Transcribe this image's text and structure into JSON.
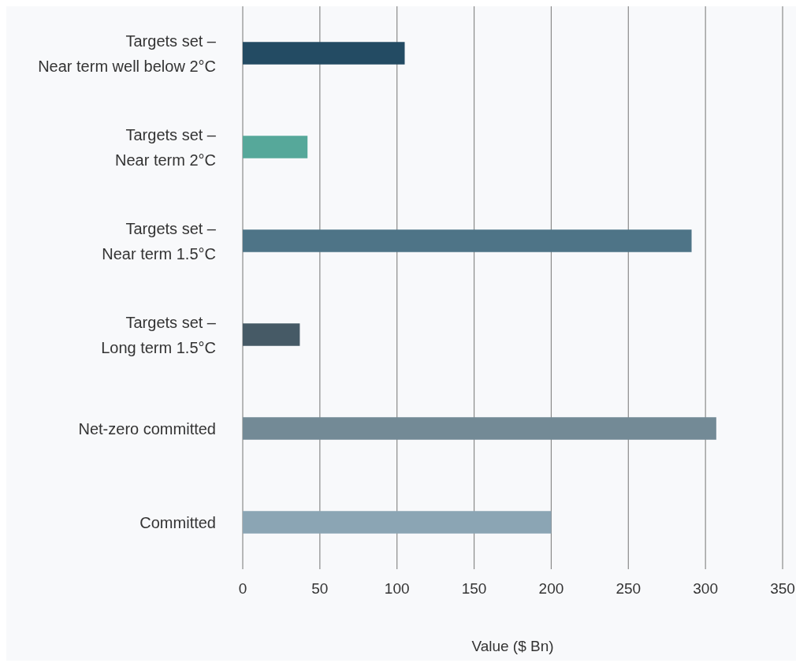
{
  "chart_data": {
    "type": "bar",
    "orientation": "horizontal",
    "xlabel": "Value ($ Bn)",
    "categories": [
      "Targets set –\nNear term well below 2°C",
      "Targets set –\nNear term 2°C",
      "Targets set –\nNear term 1.5°C",
      "Targets set –\nLong term 1.5°C",
      "Net-zero committed",
      "Committed"
    ],
    "values": [
      105,
      42,
      291,
      37,
      307,
      200
    ],
    "colors": [
      "#234b63",
      "#56a89a",
      "#4e7487",
      "#465a66",
      "#738a96",
      "#8ba5b4"
    ],
    "xlim": [
      0,
      350
    ],
    "xticks": [
      0,
      50,
      100,
      150,
      200,
      250,
      300,
      350
    ],
    "grid": "x"
  }
}
